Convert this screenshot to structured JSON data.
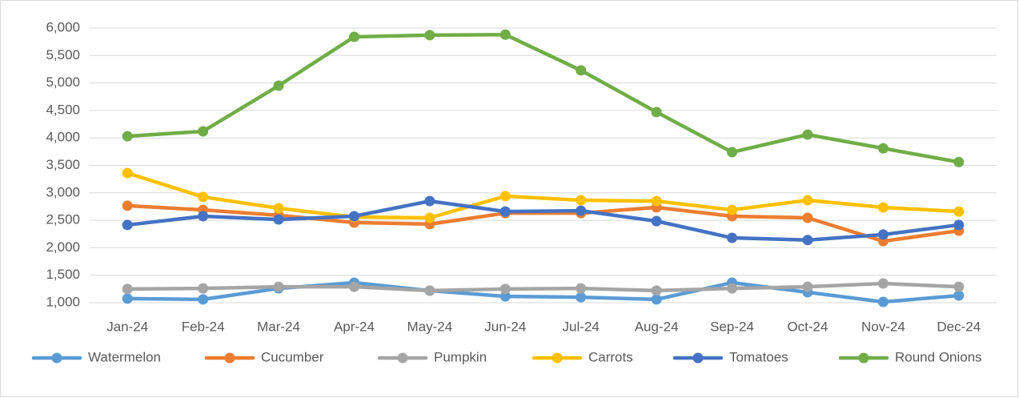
{
  "chart_data": {
    "type": "line",
    "categories": [
      "Jan-24",
      "Feb-24",
      "Mar-24",
      "Apr-24",
      "May-24",
      "Jun-24",
      "Jul-24",
      "Aug-24",
      "Sep-24",
      "Oct-24",
      "Nov-24",
      "Dec-24"
    ],
    "series": [
      {
        "name": "Watermelon",
        "color": "#5b9bd5",
        "values": [
          1075,
          1060,
          1260,
          1365,
          1220,
          1115,
          1100,
          1060,
          1365,
          1190,
          1015,
          1130
        ]
      },
      {
        "name": "Cucumber",
        "color": "#ed7d31",
        "values": [
          2765,
          2690,
          2590,
          2460,
          2430,
          2630,
          2630,
          2735,
          2575,
          2545,
          2120,
          2310
        ]
      },
      {
        "name": "Pumpkin",
        "color": "#a5a5a5",
        "values": [
          1250,
          1260,
          1290,
          1290,
          1220,
          1250,
          1260,
          1220,
          1260,
          1290,
          1350,
          1290
        ]
      },
      {
        "name": "Carrots",
        "color": "#ffc000",
        "values": [
          3360,
          2925,
          2720,
          2560,
          2545,
          2940,
          2865,
          2850,
          2690,
          2865,
          2735,
          2660
        ]
      },
      {
        "name": "Tomatoes",
        "color": "#4472c4",
        "values": [
          2415,
          2575,
          2515,
          2575,
          2850,
          2660,
          2675,
          2485,
          2180,
          2140,
          2240,
          2415
        ]
      },
      {
        "name": "Round Onions",
        "color": "#70ad47",
        "values": [
          4030,
          4120,
          4950,
          5840,
          5870,
          5880,
          5230,
          4470,
          3740,
          4060,
          3810,
          3560
        ]
      }
    ],
    "ylim": [
      1000,
      6000
    ],
    "yticks": [
      {
        "value": 1000,
        "label": "1,000"
      },
      {
        "value": 1500,
        "label": "1,500"
      },
      {
        "value": 2000,
        "label": "2,000"
      },
      {
        "value": 2500,
        "label": "2,500"
      },
      {
        "value": 3000,
        "label": "3,000"
      },
      {
        "value": 3500,
        "label": "3,500"
      },
      {
        "value": 4000,
        "label": "4,000"
      },
      {
        "value": 4500,
        "label": "4,500"
      },
      {
        "value": 5000,
        "label": "5,000"
      },
      {
        "value": 5500,
        "label": "5,500"
      },
      {
        "value": 6000,
        "label": "6,000"
      }
    ],
    "grid": true,
    "legend": "bottom"
  }
}
